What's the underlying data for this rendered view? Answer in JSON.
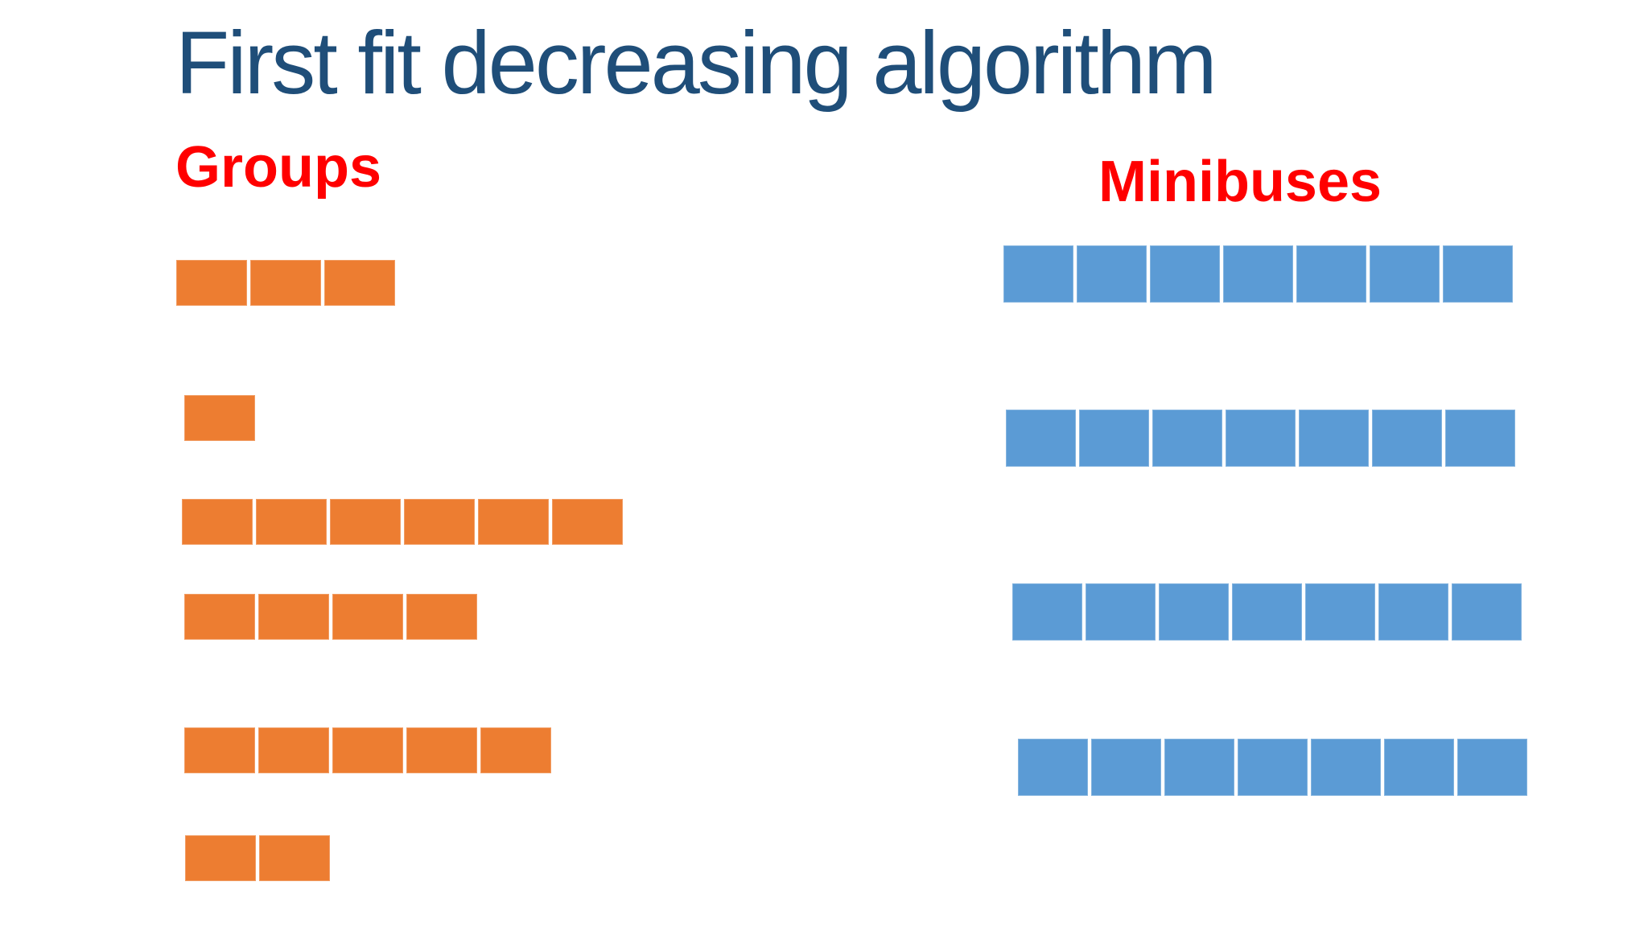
{
  "slide": {
    "title": "First fit decreasing algorithm",
    "title_color": "#1F4E79",
    "background_color": "#FFFFFF"
  },
  "groups": {
    "label": "Groups",
    "label_color": "#FF0000",
    "cell_color": "#ED7D31",
    "rows": [
      {
        "size": 3
      },
      {
        "size": 1
      },
      {
        "size": 6
      },
      {
        "size": 4
      },
      {
        "size": 5
      },
      {
        "size": 2
      }
    ]
  },
  "minibuses": {
    "label": "Minibuses",
    "label_color": "#FF0000",
    "cell_color": "#5B9BD5",
    "rows": [
      {
        "capacity": 7
      },
      {
        "capacity": 7
      },
      {
        "capacity": 7
      },
      {
        "capacity": 7
      }
    ]
  }
}
